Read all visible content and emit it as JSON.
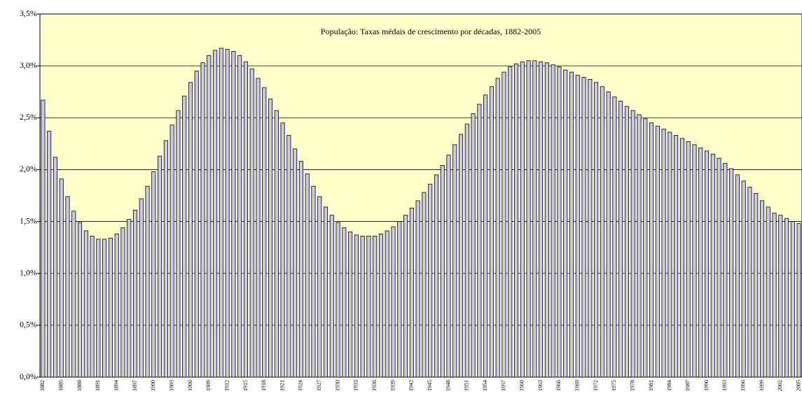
{
  "chart_data": {
    "type": "bar",
    "title": "População: Taxas médais de crescimento por décadas, 1882-2005",
    "categories": [
      "1882",
      null,
      null,
      "1885",
      null,
      null,
      "1888",
      null,
      null,
      "1891",
      null,
      null,
      "1894",
      null,
      null,
      "1897",
      null,
      null,
      "1900",
      null,
      null,
      "1903",
      null,
      null,
      "1906",
      null,
      null,
      "1909",
      null,
      null,
      "1912",
      null,
      null,
      "1915",
      null,
      null,
      "1918",
      null,
      null,
      "1921",
      null,
      null,
      "1924",
      null,
      null,
      "1927",
      null,
      null,
      "1930",
      null,
      null,
      "1933",
      null,
      null,
      "1936",
      null,
      null,
      "1939",
      null,
      null,
      "1942",
      null,
      null,
      "1945",
      null,
      null,
      "1948",
      null,
      null,
      "1951",
      null,
      null,
      "1954",
      null,
      null,
      "1957",
      null,
      null,
      "1960",
      null,
      null,
      "1963",
      null,
      null,
      "1966",
      null,
      null,
      "1969",
      null,
      null,
      "1972",
      null,
      null,
      "1975",
      null,
      null,
      "1978",
      null,
      null,
      "1981",
      null,
      null,
      "1984",
      null,
      null,
      "1987",
      null,
      null,
      "1990",
      null,
      null,
      "1993",
      null,
      null,
      "1996",
      null,
      null,
      "1999",
      null,
      null,
      "2002",
      null,
      null,
      "2005"
    ],
    "values": [
      2.67,
      2.37,
      2.12,
      1.91,
      1.74,
      1.6,
      1.49,
      1.41,
      1.36,
      1.33,
      1.33,
      1.34,
      1.38,
      1.44,
      1.52,
      1.61,
      1.72,
      1.84,
      1.98,
      2.13,
      2.28,
      2.43,
      2.57,
      2.71,
      2.84,
      2.95,
      3.03,
      3.1,
      3.15,
      3.17,
      3.16,
      3.14,
      3.1,
      3.04,
      2.97,
      2.88,
      2.79,
      2.68,
      2.57,
      2.45,
      2.33,
      2.2,
      2.08,
      1.96,
      1.84,
      1.74,
      1.64,
      1.56,
      1.49,
      1.44,
      1.4,
      1.37,
      1.36,
      1.36,
      1.36,
      1.38,
      1.41,
      1.45,
      1.5,
      1.56,
      1.63,
      1.7,
      1.78,
      1.86,
      1.95,
      2.04,
      2.14,
      2.24,
      2.34,
      2.44,
      2.54,
      2.63,
      2.72,
      2.8,
      2.88,
      2.94,
      2.99,
      3.02,
      3.04,
      3.05,
      3.05,
      3.04,
      3.03,
      3.01,
      2.99,
      2.96,
      2.94,
      2.91,
      2.89,
      2.87,
      2.84,
      2.8,
      2.75,
      2.7,
      2.66,
      2.61,
      2.57,
      2.53,
      2.49,
      2.45,
      2.42,
      2.39,
      2.36,
      2.33,
      2.3,
      2.27,
      2.24,
      2.21,
      2.18,
      2.15,
      2.11,
      2.06,
      2.01,
      1.95,
      1.89,
      1.83,
      1.77,
      1.7,
      1.64,
      1.58,
      1.56,
      1.53,
      1.5,
      1.48
    ],
    "color": "#c8c8f0",
    "ylim": [
      0,
      3.5
    ],
    "yticks": [
      {
        "value": 0,
        "label": "0,0%"
      },
      {
        "value": 0.5,
        "label": "0,5%"
      },
      {
        "value": 1,
        "label": "1,0%"
      },
      {
        "value": 1.5,
        "label": "1,5%"
      },
      {
        "value": 2,
        "label": "2,0%"
      },
      {
        "value": 2.5,
        "label": "2,5%"
      },
      {
        "value": 3,
        "label": "3,0%"
      },
      {
        "value": 3.5,
        "label": "3,5%"
      }
    ],
    "grid": true
  }
}
